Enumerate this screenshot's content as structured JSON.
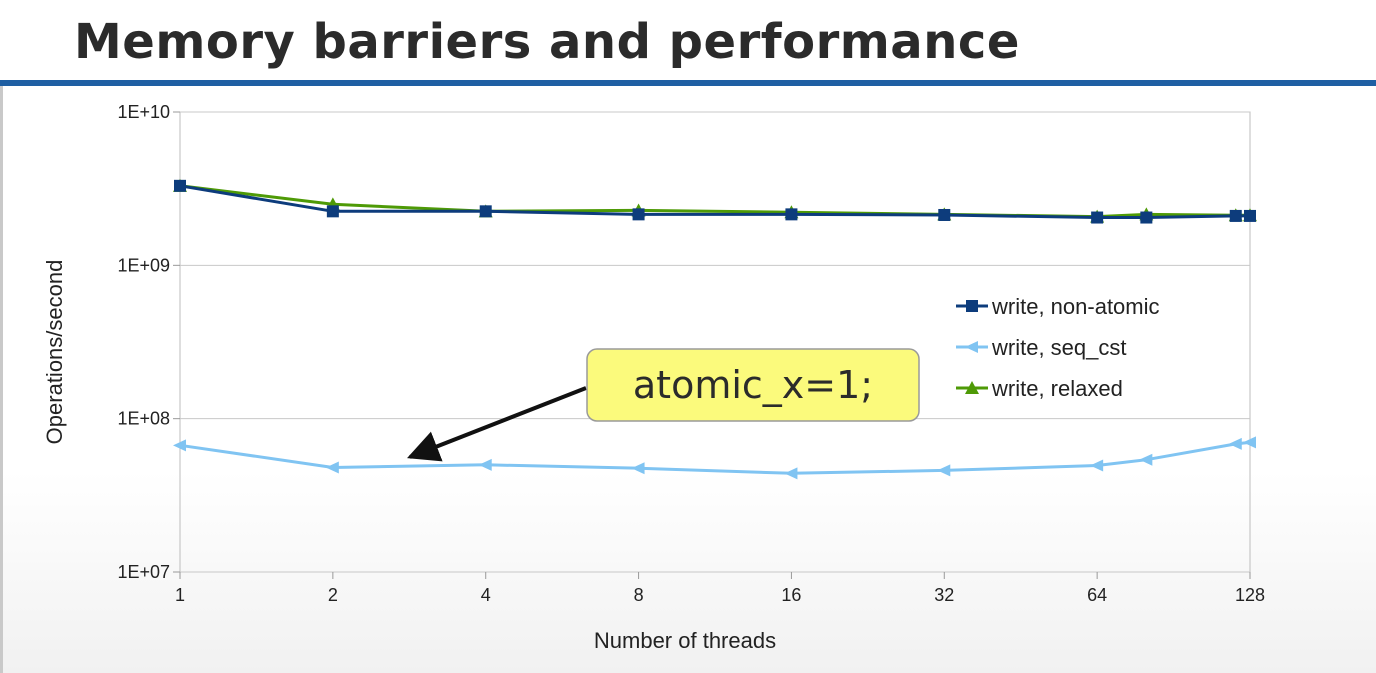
{
  "slide": {
    "title": "Memory barriers and performance"
  },
  "callout": {
    "text": "atomic_x=1;",
    "fill": "#fbfa7c",
    "stroke": "#9a9a9a"
  },
  "chart_data": {
    "type": "line",
    "title": "",
    "xlabel": "Number of threads",
    "ylabel": "Operations/second",
    "x_scale": "log2",
    "y_scale": "log10",
    "xlim": [
      1,
      128
    ],
    "ylim": [
      10000000,
      10000000000
    ],
    "x_ticks": [
      1,
      2,
      4,
      8,
      16,
      32,
      64,
      128
    ],
    "x_tick_labels": [
      "1",
      "2",
      "4",
      "8",
      "16",
      "32",
      "64",
      "128"
    ],
    "y_ticks": [
      10000000,
      100000000,
      1000000000,
      10000000000
    ],
    "y_tick_labels": [
      "1E+07",
      "1E+08",
      "1E+09",
      "1E+10"
    ],
    "grid": true,
    "legend_position": "right",
    "x": [
      1,
      2,
      4,
      8,
      16,
      32,
      64,
      80,
      120,
      128
    ],
    "series": [
      {
        "name": "write, relaxed",
        "color": "#4e9a06",
        "marker": "triangle",
        "values": [
          3300000000,
          2500000000,
          2250000000,
          2280000000,
          2220000000,
          2150000000,
          2080000000,
          2150000000,
          2120000000,
          2120000000
        ]
      },
      {
        "name": "write, seq_cst",
        "color": "#80c4f2",
        "marker": "left-triangle",
        "values": [
          67000000,
          48000000,
          50000000,
          47500000,
          44000000,
          46000000,
          49500000,
          54000000,
          68500000,
          70000000
        ]
      },
      {
        "name": "write, non-atomic",
        "color": "#0d3c7c",
        "marker": "square",
        "values": [
          3300000000,
          2250000000,
          2250000000,
          2150000000,
          2150000000,
          2130000000,
          2050000000,
          2050000000,
          2100000000,
          2100000000
        ]
      }
    ],
    "legend_order": [
      "write, non-atomic",
      "write, seq_cst",
      "write, relaxed"
    ]
  }
}
